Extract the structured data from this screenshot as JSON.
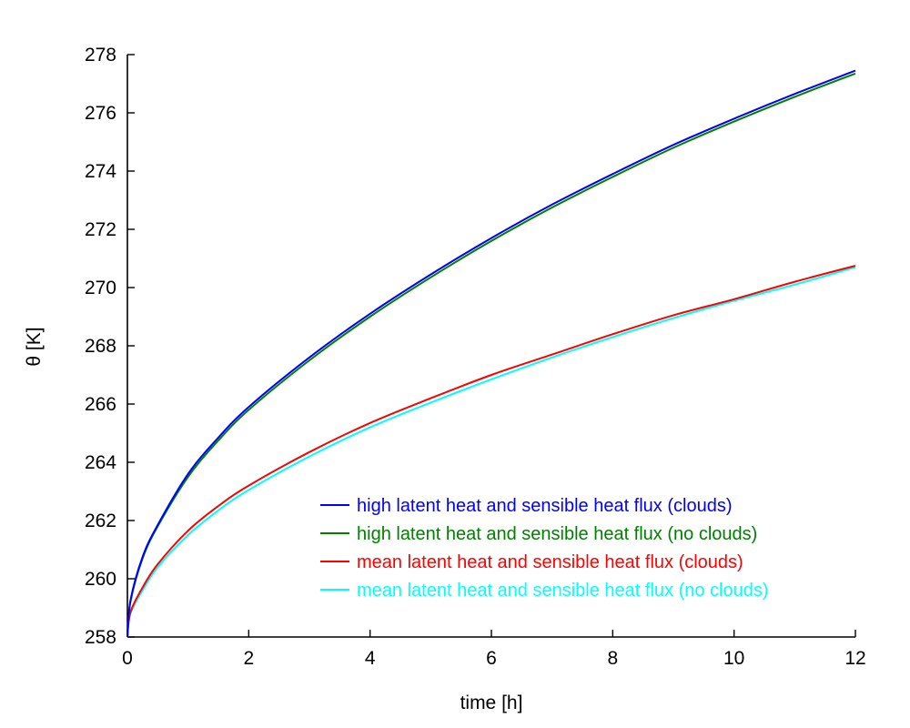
{
  "chart_data": {
    "type": "line",
    "title": "",
    "xlabel": "time [h]",
    "ylabel": "θ [K]",
    "xlim": [
      0,
      12
    ],
    "ylim": [
      258,
      278
    ],
    "xticks": [
      0,
      2,
      4,
      6,
      8,
      10,
      12
    ],
    "yticks": [
      258,
      260,
      262,
      264,
      266,
      268,
      270,
      272,
      274,
      276,
      278
    ],
    "grid": false,
    "legend_position": "lower-right",
    "x": [
      0,
      0.05,
      0.25,
      0.5,
      1,
      1.5,
      2,
      3,
      4,
      5,
      6,
      7,
      8,
      9,
      10,
      11,
      12
    ],
    "series": [
      {
        "name": "high latent heat and sensible heat flux (clouds)",
        "color": "#0000ff",
        "values": [
          258.0,
          259.25,
          260.75,
          261.85,
          263.6,
          264.85,
          265.9,
          267.6,
          269.1,
          270.45,
          271.7,
          272.85,
          273.9,
          274.9,
          275.8,
          276.65,
          277.45
        ]
      },
      {
        "name": "high latent heat and sensible heat flux (no clouds)",
        "color": "#008000",
        "values": [
          258.0,
          259.2,
          260.7,
          261.8,
          263.5,
          264.75,
          265.8,
          267.5,
          269.0,
          270.35,
          271.6,
          272.75,
          273.8,
          274.8,
          275.7,
          276.55,
          277.35
        ]
      },
      {
        "name": "mean latent heat and sensible heat flux (clouds)",
        "color": "#ff0000",
        "values": [
          258.0,
          258.85,
          259.7,
          260.5,
          261.65,
          262.5,
          263.2,
          264.35,
          265.35,
          266.2,
          267.0,
          267.7,
          268.4,
          269.05,
          269.6,
          270.2,
          270.75
        ]
      },
      {
        "name": "mean latent heat and sensible heat flux (no clouds)",
        "color": "#00ffff",
        "values": [
          258.0,
          258.8,
          259.6,
          260.4,
          261.5,
          262.35,
          263.05,
          264.2,
          265.2,
          266.05,
          266.85,
          267.6,
          268.3,
          268.95,
          269.55,
          270.1,
          270.7
        ]
      }
    ]
  }
}
